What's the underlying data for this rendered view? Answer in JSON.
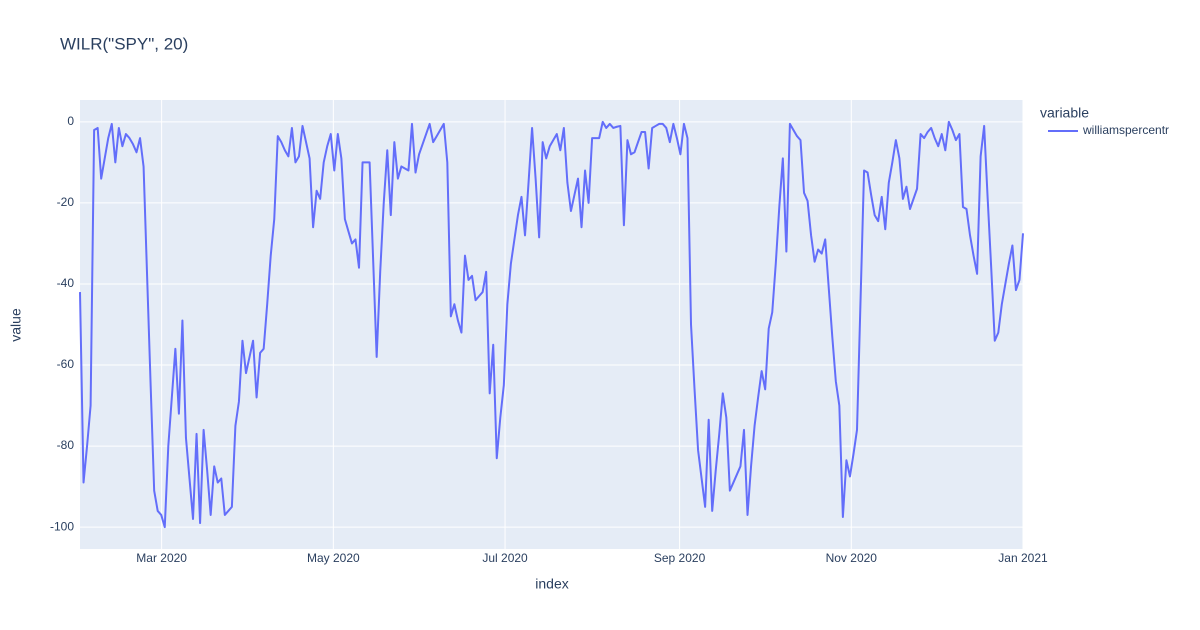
{
  "chart_data": {
    "type": "line",
    "title": "WILR(\"SPY\", 20)",
    "xlabel": "index",
    "ylabel": "value",
    "legend_title": "variable",
    "xlim": [
      "2020-02",
      "2021-01"
    ],
    "xticks": [
      {
        "value": "2020-03",
        "label": "Mar 2020"
      },
      {
        "value": "2020-05",
        "label": "May 2020"
      },
      {
        "value": "2020-07",
        "label": "Jul 2020"
      },
      {
        "value": "2020-09",
        "label": "Sep 2020"
      },
      {
        "value": "2020-11",
        "label": "Nov 2020"
      },
      {
        "value": "2021-01",
        "label": "Jan 2021"
      }
    ],
    "ylim": [
      -105.4,
      5.4
    ],
    "yticks": [
      -100,
      -80,
      -60,
      -40,
      -20,
      0
    ],
    "grid": true,
    "legend": "right",
    "series": [
      {
        "name": "williamspercentr",
        "color": "#636efa",
        "values": [
          -42,
          -89,
          -80,
          -70,
          -2,
          -1.5,
          -14,
          -9,
          -4,
          -0.5,
          -10,
          -1.5,
          -6,
          -3,
          -4,
          -5.5,
          -7.5,
          -4,
          -11,
          -38,
          -65,
          -91,
          -96,
          -97,
          -100,
          -80,
          -68,
          -56,
          -72,
          -49,
          -78,
          -88,
          -98,
          -77,
          -99,
          -76,
          -86,
          -97,
          -85,
          -89,
          -88,
          -97,
          -96,
          -95,
          -75,
          -69,
          -54,
          -62,
          -58,
          -54,
          -68,
          -57,
          -56,
          -45,
          -33,
          -24,
          -3.5,
          -5,
          -7,
          -8.5,
          -1.5,
          -10,
          -8.5,
          -1,
          -5,
          -9,
          -26,
          -17,
          -19,
          -10,
          -6,
          -3,
          -12,
          -3,
          -9,
          -24,
          -27,
          -30,
          -29,
          -36,
          -10,
          -10,
          -10,
          -34,
          -58,
          -37,
          -20,
          -7,
          -23,
          -5,
          -14,
          -11,
          -11.5,
          -12,
          -0.5,
          -12.5,
          -8,
          -5.5,
          -3,
          -0.5,
          -5,
          -3.5,
          -2,
          -0.5,
          -10,
          -48,
          -45,
          -49,
          -52,
          -33,
          -39,
          -38,
          -44,
          -43,
          -42,
          -37,
          -67,
          -55,
          -83,
          -73,
          -65,
          -45,
          -35,
          -29,
          -23,
          -18.5,
          -28,
          -15,
          -1.5,
          -14,
          -28.5,
          -5,
          -9,
          -6,
          -4.5,
          -3,
          -7,
          -1.5,
          -15,
          -22,
          -18,
          -14,
          -26,
          -12,
          -20,
          -4,
          -4,
          -4,
          0,
          -1.5,
          -0.5,
          -1.5,
          -1.2,
          -1,
          -25.5,
          -4.5,
          -8,
          -7.5,
          -5,
          -2.5,
          -2.5,
          -11.5,
          -1.5,
          -1,
          -0.5,
          -0.5,
          -1.5,
          -5,
          -0.5,
          -4,
          -8,
          -0.5,
          -4,
          -50,
          -66,
          -81,
          -88,
          -95,
          -73.5,
          -96,
          -86,
          -77,
          -67,
          -73,
          -91,
          -89,
          -87,
          -85,
          -76,
          -97,
          -85,
          -75,
          -68,
          -61.5,
          -66,
          -51,
          -47,
          -35,
          -21,
          -9,
          -32,
          -0.5,
          -2,
          -3.5,
          -4.5,
          -17.5,
          -19.5,
          -28,
          -34.5,
          -31.5,
          -32.5,
          -29,
          -41,
          -53,
          -64,
          -70,
          -97.5,
          -83.5,
          -87.5,
          -82,
          -76,
          -44,
          -12,
          -12.5,
          -18,
          -23,
          -24.5,
          -18.5,
          -26.5,
          -15,
          -10,
          -4.5,
          -9,
          -19,
          -16,
          -21.5,
          -19,
          -16.5,
          -3,
          -4,
          -2.5,
          -1.5,
          -4,
          -6,
          -3,
          -7,
          0,
          -2,
          -4.5,
          -3,
          -21,
          -21.5,
          -28,
          -33,
          -37.5,
          -8.5,
          -1,
          -19,
          -36,
          -54,
          -52,
          -45,
          -40,
          -35,
          -30.5,
          -41.5,
          -39,
          -27.5
        ]
      }
    ]
  }
}
